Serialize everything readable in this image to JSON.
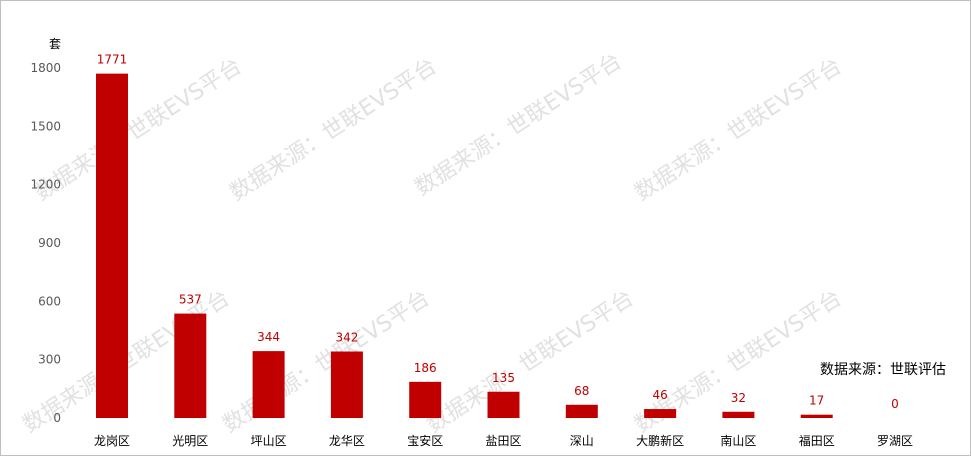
{
  "chart_data": {
    "type": "bar",
    "unit_label": "套",
    "categories": [
      "龙岗区",
      "光明区",
      "坪山区",
      "龙华区",
      "宝安区",
      "盐田区",
      "深山",
      "大鹏新区",
      "南山区",
      "福田区",
      "罗湖区"
    ],
    "values": [
      1771,
      537,
      344,
      342,
      186,
      135,
      68,
      46,
      32,
      17,
      0
    ],
    "yticks": [
      0,
      300,
      600,
      900,
      1200,
      1500,
      1800
    ],
    "ylim": [
      0,
      1800
    ],
    "grid": false,
    "bar_color": "#c00000",
    "label_color": "#c00000",
    "source_note": "数据来源：世联评估",
    "watermark": "数据来源：世联EVS平台"
  }
}
